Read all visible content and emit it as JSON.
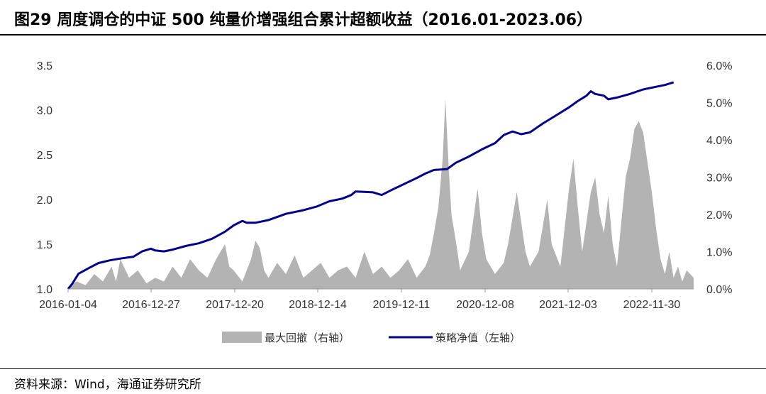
{
  "header": {
    "title": "图29 周度调仓的中证 500 纯量价增强组合累计超额收益（2016.01-2023.06）"
  },
  "footer": {
    "source": "资料来源：Wind，海通证券研究所"
  },
  "colors": {
    "line": "#00008B",
    "area": "#B3B3B3"
  },
  "chart_data": {
    "type": "line",
    "title": "",
    "y_left": {
      "min": 1.0,
      "max": 3.5,
      "ticks": [
        "1.0",
        "1.5",
        "2.0",
        "2.5",
        "3.0",
        "3.5"
      ],
      "values": [
        1.0,
        1.5,
        2.0,
        2.5,
        3.0,
        3.5
      ]
    },
    "y_right": {
      "min": 0.0,
      "max": 6.0,
      "ticks": [
        "0.0%",
        "1.0%",
        "2.0%",
        "3.0%",
        "4.0%",
        "5.0%",
        "6.0%"
      ],
      "values": [
        0,
        1,
        2,
        3,
        4,
        5,
        6
      ]
    },
    "x_ticks": [
      "2016-01-04",
      "2016-12-27",
      "2017-12-20",
      "2018-12-14",
      "2019-12-11",
      "2020-12-08",
      "2021-12-03",
      "2022-11-30"
    ],
    "legend": [
      "最大回撤（右轴）",
      "策略净值（左轴）"
    ],
    "series": [
      {
        "name": "策略净值（左轴）",
        "axis": "left",
        "type": "line",
        "points": [
          [
            0,
            1.0
          ],
          [
            0.05,
            1.06
          ],
          [
            0.12,
            1.17
          ],
          [
            0.25,
            1.24
          ],
          [
            0.35,
            1.29
          ],
          [
            0.48,
            1.32
          ],
          [
            0.6,
            1.34
          ],
          [
            0.75,
            1.36
          ],
          [
            0.85,
            1.42
          ],
          [
            0.95,
            1.45
          ],
          [
            1.0,
            1.43
          ],
          [
            1.1,
            1.42
          ],
          [
            1.2,
            1.44
          ],
          [
            1.35,
            1.48
          ],
          [
            1.5,
            1.51
          ],
          [
            1.65,
            1.56
          ],
          [
            1.8,
            1.64
          ],
          [
            1.9,
            1.71
          ],
          [
            2.0,
            1.76
          ],
          [
            2.05,
            1.74
          ],
          [
            2.15,
            1.74
          ],
          [
            2.3,
            1.77
          ],
          [
            2.5,
            1.84
          ],
          [
            2.7,
            1.88
          ],
          [
            2.85,
            1.92
          ],
          [
            3.0,
            1.98
          ],
          [
            3.15,
            2.01
          ],
          [
            3.25,
            2.05
          ],
          [
            3.3,
            2.09
          ],
          [
            3.5,
            2.08
          ],
          [
            3.6,
            2.05
          ],
          [
            3.7,
            2.1
          ],
          [
            3.85,
            2.17
          ],
          [
            4.0,
            2.24
          ],
          [
            4.1,
            2.29
          ],
          [
            4.2,
            2.33
          ],
          [
            4.35,
            2.34
          ],
          [
            4.45,
            2.41
          ],
          [
            4.6,
            2.48
          ],
          [
            4.75,
            2.56
          ],
          [
            4.9,
            2.63
          ],
          [
            5.0,
            2.72
          ],
          [
            5.1,
            2.76
          ],
          [
            5.2,
            2.73
          ],
          [
            5.3,
            2.75
          ],
          [
            5.45,
            2.85
          ],
          [
            5.6,
            2.94
          ],
          [
            5.75,
            3.03
          ],
          [
            5.85,
            3.1
          ],
          [
            5.95,
            3.16
          ],
          [
            6.0,
            3.21
          ],
          [
            6.05,
            3.18
          ],
          [
            6.15,
            3.16
          ],
          [
            6.2,
            3.12
          ],
          [
            6.3,
            3.14
          ],
          [
            6.45,
            3.18
          ],
          [
            6.6,
            3.23
          ],
          [
            6.75,
            3.26
          ],
          [
            6.85,
            3.28
          ],
          [
            6.95,
            3.31
          ]
        ]
      },
      {
        "name": "最大回撤（右轴）",
        "axis": "right",
        "type": "area",
        "points": [
          [
            0,
            0.05
          ],
          [
            0.1,
            0.2
          ],
          [
            0.2,
            0.1
          ],
          [
            0.3,
            0.4
          ],
          [
            0.4,
            0.2
          ],
          [
            0.5,
            0.6
          ],
          [
            0.55,
            0.2
          ],
          [
            0.6,
            0.8
          ],
          [
            0.7,
            0.3
          ],
          [
            0.8,
            0.5
          ],
          [
            0.9,
            0.15
          ],
          [
            1.0,
            0.3
          ],
          [
            1.1,
            0.2
          ],
          [
            1.2,
            0.6
          ],
          [
            1.3,
            0.3
          ],
          [
            1.4,
            0.8
          ],
          [
            1.5,
            0.5
          ],
          [
            1.6,
            0.3
          ],
          [
            1.7,
            0.8
          ],
          [
            1.8,
            1.2
          ],
          [
            1.85,
            0.6
          ],
          [
            1.9,
            0.5
          ],
          [
            2.0,
            0.2
          ],
          [
            2.1,
            0.8
          ],
          [
            2.15,
            1.3
          ],
          [
            2.2,
            1.1
          ],
          [
            2.25,
            0.5
          ],
          [
            2.3,
            0.3
          ],
          [
            2.4,
            0.7
          ],
          [
            2.5,
            0.4
          ],
          [
            2.6,
            0.9
          ],
          [
            2.7,
            0.3
          ],
          [
            2.8,
            0.5
          ],
          [
            2.9,
            0.7
          ],
          [
            3.0,
            0.3
          ],
          [
            3.1,
            0.5
          ],
          [
            3.2,
            0.6
          ],
          [
            3.3,
            0.3
          ],
          [
            3.4,
            1.0
          ],
          [
            3.5,
            0.4
          ],
          [
            3.6,
            0.6
          ],
          [
            3.7,
            0.3
          ],
          [
            3.8,
            0.5
          ],
          [
            3.9,
            0.8
          ],
          [
            4.0,
            0.3
          ],
          [
            4.1,
            0.6
          ],
          [
            4.15,
            0.9
          ],
          [
            4.2,
            1.5
          ],
          [
            4.25,
            2.2
          ],
          [
            4.3,
            3.5
          ],
          [
            4.33,
            5.1
          ],
          [
            4.37,
            3.2
          ],
          [
            4.4,
            2.0
          ],
          [
            4.45,
            1.3
          ],
          [
            4.5,
            0.5
          ],
          [
            4.6,
            1.0
          ],
          [
            4.7,
            2.7
          ],
          [
            4.75,
            1.5
          ],
          [
            4.8,
            0.8
          ],
          [
            4.9,
            0.4
          ],
          [
            5.0,
            0.7
          ],
          [
            5.05,
            1.2
          ],
          [
            5.1,
            1.9
          ],
          [
            5.15,
            2.6
          ],
          [
            5.2,
            1.8
          ],
          [
            5.25,
            1.0
          ],
          [
            5.3,
            0.6
          ],
          [
            5.4,
            1.0
          ],
          [
            5.5,
            2.4
          ],
          [
            5.55,
            1.2
          ],
          [
            5.65,
            0.6
          ],
          [
            5.75,
            2.7
          ],
          [
            5.8,
            3.5
          ],
          [
            5.85,
            2.2
          ],
          [
            5.9,
            1.0
          ],
          [
            5.95,
            1.8
          ],
          [
            6.0,
            2.6
          ],
          [
            6.05,
            3.0
          ],
          [
            6.1,
            2.0
          ],
          [
            6.15,
            1.5
          ],
          [
            6.2,
            2.5
          ],
          [
            6.25,
            1.2
          ],
          [
            6.3,
            0.6
          ],
          [
            6.35,
            1.8
          ],
          [
            6.4,
            3.0
          ],
          [
            6.45,
            3.5
          ],
          [
            6.5,
            4.3
          ],
          [
            6.55,
            4.5
          ],
          [
            6.6,
            4.2
          ],
          [
            6.65,
            3.4
          ],
          [
            6.7,
            2.6
          ],
          [
            6.75,
            1.6
          ],
          [
            6.8,
            0.8
          ],
          [
            6.85,
            0.4
          ],
          [
            6.9,
            1.0
          ],
          [
            6.95,
            0.3
          ],
          [
            7.0,
            0.6
          ],
          [
            7.05,
            0.2
          ],
          [
            7.1,
            0.5
          ],
          [
            7.18,
            0.3
          ]
        ]
      }
    ]
  }
}
